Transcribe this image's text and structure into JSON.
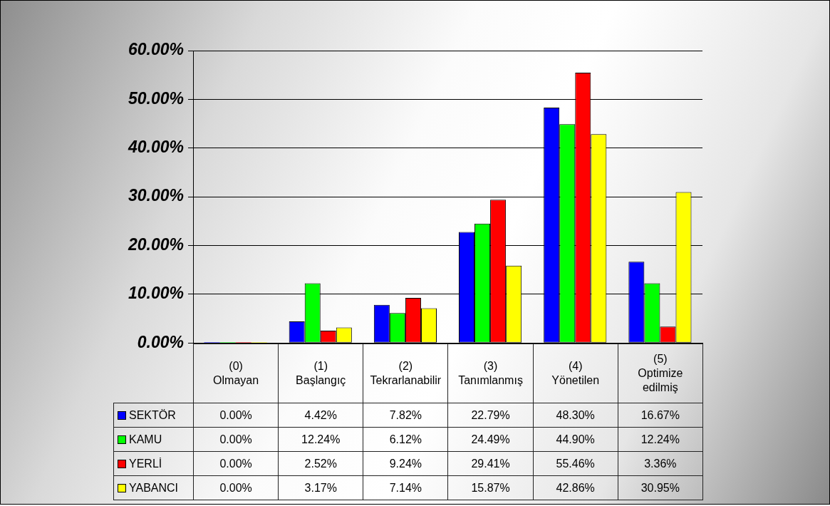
{
  "chart_data": {
    "type": "bar",
    "categories": [
      "(0)\nOlmayan",
      "(1)\nBaşlangıç",
      "(2)\nTekrarlanabilir",
      "(3)\nTanımlanmış",
      "(4)\nYönetilen",
      "(5)\nOptimize edilmiş"
    ],
    "series": [
      {
        "name": "SEKTÖR",
        "color": "#0000ff",
        "values": [
          0,
          4.42,
          7.82,
          22.79,
          48.3,
          16.67
        ],
        "value_labels": [
          "0.00%",
          "4.42%",
          "7.82%",
          "22.79%",
          "48.30%",
          "16.67%"
        ]
      },
      {
        "name": "KAMU",
        "color": "#00ff00",
        "values": [
          0,
          12.24,
          6.12,
          24.49,
          44.9,
          12.24
        ],
        "value_labels": [
          "0.00%",
          "12.24%",
          "6.12%",
          "24.49%",
          "44.90%",
          "12.24%"
        ]
      },
      {
        "name": "YERLİ",
        "color": "#ff0000",
        "values": [
          0,
          2.52,
          9.24,
          29.41,
          55.46,
          3.36
        ],
        "value_labels": [
          "0.00%",
          "2.52%",
          "9.24%",
          "29.41%",
          "55.46%",
          "3.36%"
        ]
      },
      {
        "name": "YABANCI",
        "color": "#ffff00",
        "values": [
          0,
          3.17,
          7.14,
          15.87,
          42.86,
          30.95
        ],
        "value_labels": [
          "0.00%",
          "3.17%",
          "7.14%",
          "15.87%",
          "42.86%",
          "30.95%"
        ]
      }
    ],
    "ylim": [
      0,
      60
    ],
    "yticks": [
      {
        "value": 0,
        "label": "0.00%"
      },
      {
        "value": 10,
        "label": "10.00%"
      },
      {
        "value": 20,
        "label": "20.00%"
      },
      {
        "value": 30,
        "label": "30.00%"
      },
      {
        "value": 40,
        "label": "40.00%"
      },
      {
        "value": 50,
        "label": "50.00%"
      },
      {
        "value": 60,
        "label": "60.00%"
      }
    ],
    "grid": "y",
    "legend": "bottom left"
  }
}
